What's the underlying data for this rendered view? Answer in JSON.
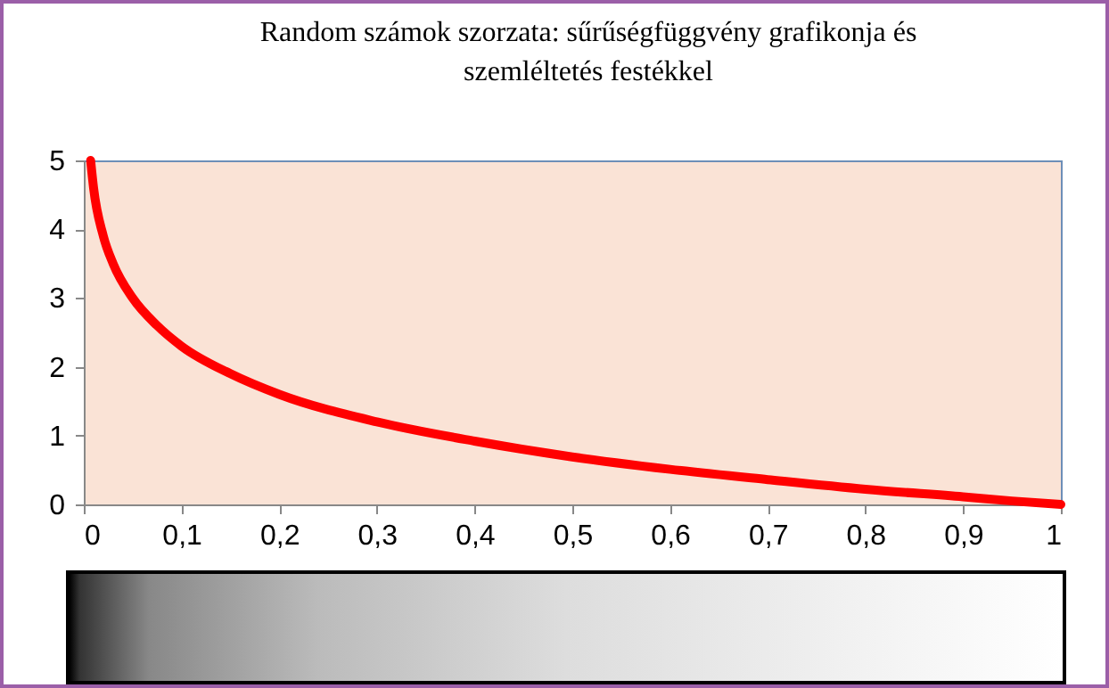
{
  "chart_data": {
    "type": "line",
    "title": "Random számok szorzata: sűrűségfüggvény grafikonja és szemléltetés festékkel",
    "x": [
      0.007,
      0.01,
      0.02,
      0.03,
      0.05,
      0.075,
      0.1,
      0.15,
      0.2,
      0.3,
      0.4,
      0.5,
      0.6,
      0.7,
      0.8,
      0.9,
      0.95,
      1
    ],
    "series": [
      {
        "color": "#ff0000",
        "values": [
          5,
          4.6,
          3.9,
          3.5,
          3.0,
          2.6,
          2.3,
          1.9,
          1.6,
          1.2,
          0.92,
          0.69,
          0.51,
          0.36,
          0.22,
          0.11,
          0.05,
          0
        ]
      }
    ],
    "xlim": [
      0,
      1
    ],
    "ylim": [
      0,
      5
    ],
    "xticks": [
      0,
      {
        "value": 0.1,
        "label": "0,1"
      },
      {
        "value": 0.2,
        "label": "0,2"
      },
      {
        "value": 0.3,
        "label": "0,3"
      },
      {
        "value": 0.4,
        "label": "0,4"
      },
      {
        "value": 0.5,
        "label": "0,5"
      },
      {
        "value": 0.6,
        "label": "0,6"
      },
      {
        "value": 0.7,
        "label": "0,7"
      },
      {
        "value": 0.8,
        "label": "0,8"
      },
      {
        "value": 0.9,
        "label": "0,9"
      },
      1
    ],
    "yticks": [
      0,
      1,
      2,
      3,
      4,
      5
    ],
    "grid": false,
    "marker": "none",
    "line_style": "solid"
  }
}
